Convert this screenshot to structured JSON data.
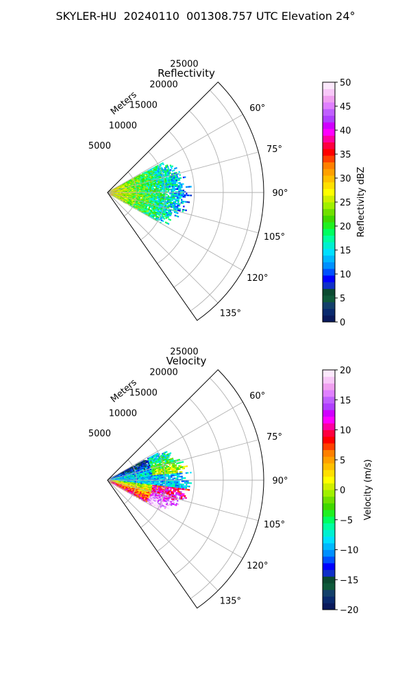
{
  "figure_title": "SKYLER-HU  20240110  001308.757 UTC Elevation 24°",
  "chart_data": [
    {
      "type": "heatmap",
      "projection": "polar-sector",
      "title": "Reflectivity",
      "range_label": "Meters",
      "range_ticks": [
        5000,
        10000,
        15000,
        20000,
        25000
      ],
      "range_max": 27000,
      "azimuth_min": 45,
      "azimuth_max": 145,
      "azimuth_ticks": [
        60,
        75,
        90,
        105,
        120,
        135
      ],
      "azimuth_tick_labels": [
        "60°",
        "75°",
        "90°",
        "105°",
        "120°",
        "135°"
      ],
      "colorbar": {
        "label": "Reflectivity dBZ",
        "min": 0,
        "max": 50,
        "ticks": [
          0,
          5,
          10,
          15,
          20,
          25,
          30,
          35,
          40,
          45,
          50
        ],
        "colors": [
          "#0a1a5c",
          "#0a2a6e",
          "#13406a",
          "#0f5a3a",
          "#0b4a30",
          "#1030c8",
          "#0000ff",
          "#0050ff",
          "#0090ff",
          "#00b8ff",
          "#00e0ff",
          "#00f0d0",
          "#00ffa0",
          "#00ff60",
          "#20f020",
          "#40d800",
          "#70e000",
          "#a0f000",
          "#d0f000",
          "#ffff00",
          "#ffe000",
          "#ffc000",
          "#ffa000",
          "#ff8000",
          "#ff4000",
          "#ff0000",
          "#ff0040",
          "#ff00a0",
          "#ff00ff",
          "#d000ff",
          "#b040ff",
          "#c060ff",
          "#e080ff",
          "#f0a0f0",
          "#f8c8f8",
          "#fce8fc"
        ]
      },
      "echo_extent_m": 14000,
      "echo_azimuth_range": [
        62,
        120
      ]
    },
    {
      "type": "heatmap",
      "projection": "polar-sector",
      "title": "Velocity",
      "range_label": "Meters",
      "range_ticks": [
        5000,
        10000,
        15000,
        20000,
        25000
      ],
      "range_max": 27000,
      "azimuth_min": 45,
      "azimuth_max": 145,
      "azimuth_ticks": [
        60,
        75,
        90,
        105,
        120,
        135
      ],
      "azimuth_tick_labels": [
        "60°",
        "75°",
        "90°",
        "105°",
        "120°",
        "135°"
      ],
      "colorbar": {
        "label": "Velocity (m/s)",
        "min": -20,
        "max": 20,
        "ticks": [
          -20,
          -15,
          -10,
          -5,
          0,
          5,
          10,
          15,
          20
        ],
        "colors": [
          "#0a1a5c",
          "#0a2a6e",
          "#13406a",
          "#0f5a3a",
          "#0b4a30",
          "#1030c8",
          "#0000ff",
          "#0050ff",
          "#0090ff",
          "#00b8ff",
          "#00e0ff",
          "#00f0d0",
          "#00ffa0",
          "#00ff60",
          "#20f020",
          "#40d800",
          "#70e000",
          "#a0f000",
          "#d0f000",
          "#ffff00",
          "#ffe000",
          "#ffc000",
          "#ffa000",
          "#ff8000",
          "#ff4000",
          "#ff0000",
          "#ff0040",
          "#ff00a0",
          "#ff00ff",
          "#d000ff",
          "#b040ff",
          "#c060ff",
          "#e080ff",
          "#f0a0f0",
          "#f8c8f8",
          "#fce8fc"
        ]
      },
      "echo_extent_m": 14000,
      "echo_azimuth_range": [
        62,
        120
      ]
    }
  ]
}
